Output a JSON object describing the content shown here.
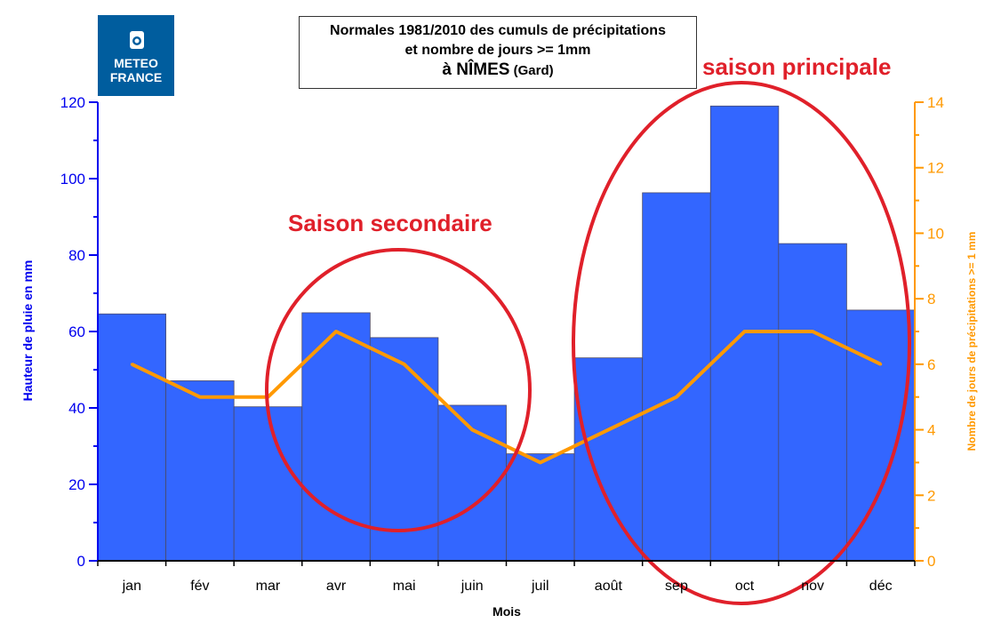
{
  "logo": {
    "line1": "METEO",
    "line2": "FRANCE",
    "bg_color": "#005d9e"
  },
  "title": {
    "line1": "Normales 1981/2010 des cumuls de précipitations",
    "line2": "et nombre de jours >= 1mm",
    "line3_prefix": "à ",
    "line3_city": "NÎMES",
    "line3_dept": " (Gard)"
  },
  "annotations": {
    "secondary": "Saison secondaire",
    "main": "saison principale",
    "color": "#e0202a"
  },
  "chart_data": {
    "type": "bar",
    "categories": [
      "jan",
      "fév",
      "mar",
      "avr",
      "mai",
      "juin",
      "juil",
      "août",
      "sep",
      "oct",
      "nov",
      "déc"
    ],
    "xlabel": "Mois",
    "series": [
      {
        "type": "bar",
        "axis": "left",
        "color": "#3366ff",
        "values": [
          64.6,
          47.1,
          40.3,
          64.9,
          58.4,
          40.7,
          28.0,
          53.1,
          96.3,
          119.0,
          83.0,
          65.6
        ]
      },
      {
        "type": "line",
        "axis": "right",
        "color": "#ff9900",
        "values": [
          6,
          5,
          5,
          7,
          6,
          4,
          3,
          4,
          5,
          7,
          7,
          6
        ]
      }
    ],
    "y_left": {
      "label": "Hauteur de pluie en mm",
      "range": [
        0,
        120
      ],
      "ticks": [
        0,
        20,
        40,
        60,
        80,
        100,
        120
      ],
      "color": "#0000ee"
    },
    "y_right": {
      "label": "Nombre de jours de précipitations >= 1 mm",
      "range": [
        0,
        14
      ],
      "ticks": [
        0,
        2,
        4,
        6,
        8,
        10,
        12,
        14
      ],
      "color": "#ff9900"
    },
    "grid": false,
    "legend": "none"
  }
}
